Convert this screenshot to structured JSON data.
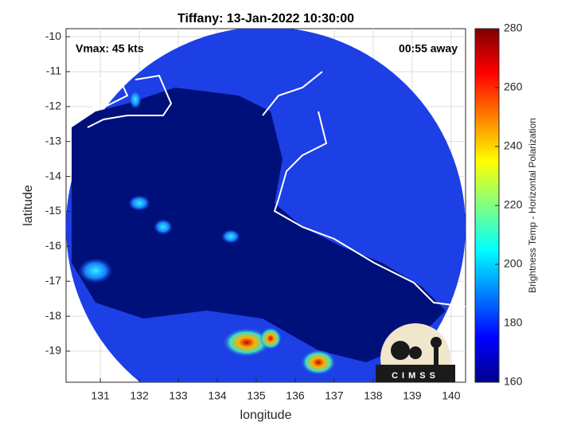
{
  "chart_data": {
    "type": "image",
    "title": "Tiffany: 13-Jan-2022 10:30:00",
    "annotations": [
      "Vmax: 45 kts",
      "00:55 away"
    ],
    "xlabel": "longitude",
    "ylabel": "latitude",
    "xlim": [
      130.12,
      140.37
    ],
    "xticks": [
      131,
      132,
      133,
      134,
      135,
      136,
      137,
      138,
      139,
      140
    ],
    "ylim": [
      -19.89,
      -9.77
    ],
    "yticks": [
      -10,
      -11,
      -12,
      -13,
      -14,
      -15,
      -16,
      -17,
      -18,
      -19
    ],
    "grid": true,
    "colormap": "jet",
    "colorbar": {
      "label": "Brightness Temp - Horizontal Polarization",
      "lim": [
        160,
        280
      ],
      "ticks": [
        160,
        180,
        200,
        220,
        240,
        260,
        280
      ]
    },
    "logo_text": "CIMSS"
  }
}
